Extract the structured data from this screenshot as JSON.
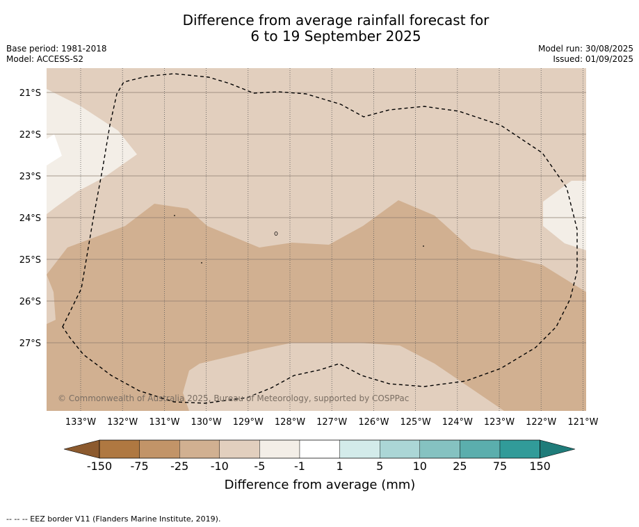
{
  "title": {
    "line1": "Difference from average rainfall forecast for",
    "line2": "6 to 19 September 2025"
  },
  "meta": {
    "base_period": "Base period: 1981-2018",
    "model": "Model: ACCESS-S2",
    "model_run": "Model run: 30/08/2025",
    "issued": "Issued: 01/09/2025"
  },
  "copyright": "© Commonwealth of Australia 2025, Bureau of Meteorology, supported by COSPPac",
  "colorbar": {
    "title": "Difference from average (mm)",
    "labels": [
      "-150",
      "-75",
      "-25",
      "-10",
      "-5",
      "-1",
      "1",
      "5",
      "10",
      "25",
      "75",
      "150"
    ],
    "colors": [
      "#8c5a2e",
      "#af7841",
      "#c29468",
      "#d1b091",
      "#e2cfbe",
      "#f3eee7",
      "#ffffff",
      "#d3ebea",
      "#abd6d6",
      "#85c2c1",
      "#5baead",
      "#319b99",
      "#1f7c7a"
    ]
  },
  "chart_data": {
    "type": "map",
    "longitude_ticks": [
      "133°W",
      "132°W",
      "131°W",
      "130°W",
      "129°W",
      "128°W",
      "127°W",
      "126°W",
      "125°W",
      "124°W",
      "123°W",
      "122°W",
      "121°W"
    ],
    "latitude_ticks": [
      "21°S",
      "22°S",
      "23°S",
      "24°S",
      "25°S",
      "26°S",
      "27°S"
    ],
    "lon_range": [
      -133.8,
      -120.9
    ],
    "lat_range": [
      -28.6,
      -20.4
    ],
    "grid": true,
    "region_classes": {
      "background": "-10 to -5",
      "light_patches": "-5 to -1",
      "central_band": "-25 to -10"
    }
  },
  "footnote": "--  --  -- EEZ border V11 (Flanders Marine Institute, 2019)."
}
